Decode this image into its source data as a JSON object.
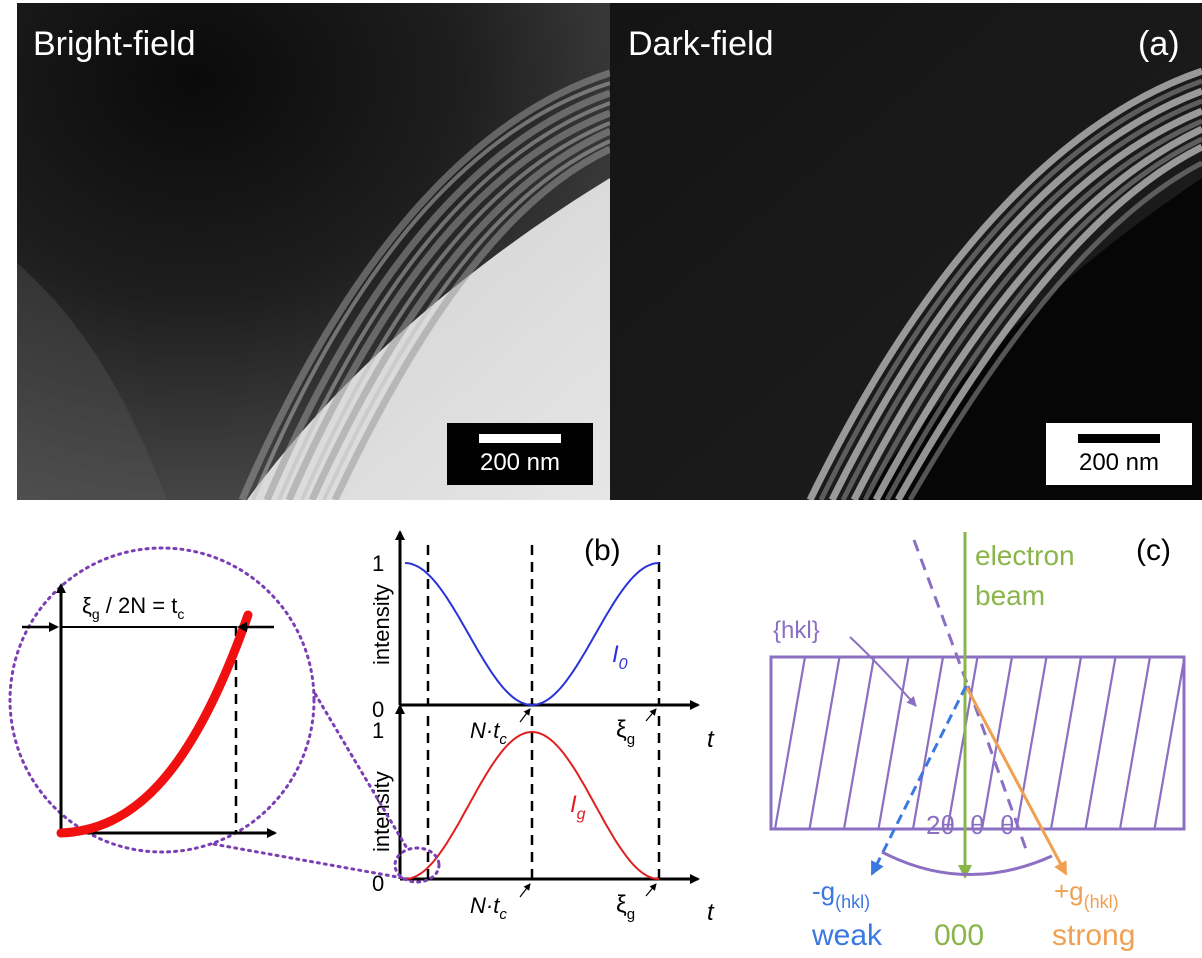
{
  "panel_a": {
    "label": "(a)",
    "bright_field": {
      "title": "Bright-field",
      "scale_bar": "200 nm"
    },
    "dark_field": {
      "title": "Dark-field",
      "scale_bar": "200 nm"
    }
  },
  "panel_b": {
    "label": "(b)",
    "top": {
      "ylabel": "intensity",
      "ytick_max": "1",
      "ytick_min": "0",
      "series": "I",
      "series_sub": "0",
      "xmark1_main": "N·t",
      "xmark1_sub": "c",
      "xmark2_main": "ξ",
      "xmark2_sub": "g",
      "xlabel": "t"
    },
    "bottom": {
      "ylabel": "intensity",
      "ytick_max": "1",
      "ytick_min": "0",
      "series": "I",
      "series_sub": "g",
      "xmark1_main": "N·t",
      "xmark1_sub": "c",
      "xmark2_main": "ξ",
      "xmark2_sub": "g",
      "xlabel": "t"
    },
    "inset": {
      "eq_xi": "ξ",
      "eq_xi_sub": "g",
      "eq_mid": " / 2N = t",
      "eq_t_sub": "c"
    }
  },
  "panel_c": {
    "label": "(c)",
    "beam_line1": "electron",
    "beam_line2": "beam",
    "planes": "{hkl}",
    "angle_2theta": "2θ",
    "angle_theta1": "θ",
    "angle_theta2": "θ",
    "neg_g": "-g",
    "neg_g_sub": "(hkl)",
    "neg_g_strength": "weak",
    "zero": "000",
    "pos_g": "+g",
    "pos_g_sub": "(hkl)",
    "pos_g_strength": "strong"
  },
  "colors": {
    "blue": "#2b33d8",
    "red": "#e02020",
    "purple": "#8b6fc2",
    "green": "#8ab54a",
    "orange": "#f0a052",
    "weak_blue": "#3b78e0"
  }
}
